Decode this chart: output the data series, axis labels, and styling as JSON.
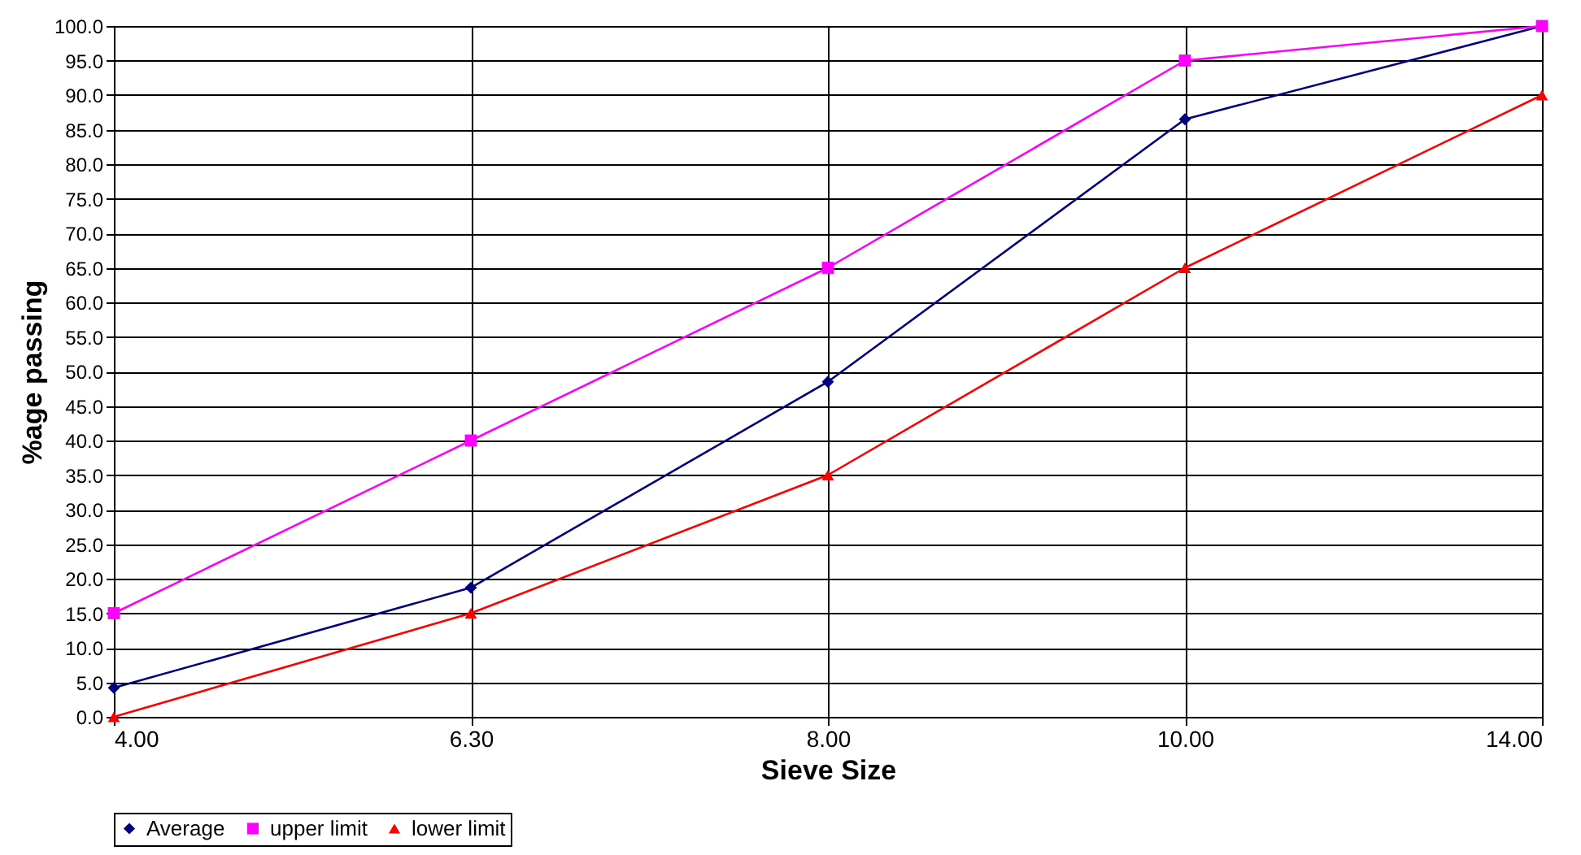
{
  "chart_data": {
    "type": "line",
    "xlabel": "Sieve Size",
    "ylabel": "%age passing",
    "categories": [
      "4.00",
      "6.30",
      "8.00",
      "10.00",
      "14.00"
    ],
    "series": [
      {
        "name": "Average",
        "color": "#000080",
        "marker": "diamond",
        "values": [
          4.2,
          18.7,
          48.5,
          86.5,
          100.0
        ]
      },
      {
        "name": "upper limit",
        "color": "#ff00ff",
        "marker": "square",
        "values": [
          15.0,
          40.0,
          65.0,
          95.0,
          100.0
        ]
      },
      {
        "name": "lower limit",
        "color": "#ff0000",
        "marker": "triangle",
        "values": [
          0.0,
          15.0,
          35.0,
          65.0,
          90.0
        ]
      }
    ],
    "ylim": [
      0,
      100
    ],
    "yticks": [
      {
        "value": 0,
        "label": "0.0"
      },
      {
        "value": 5,
        "label": "5.0"
      },
      {
        "value": 10,
        "label": "10.0"
      },
      {
        "value": 15,
        "label": "15.0"
      },
      {
        "value": 20,
        "label": "20.0"
      },
      {
        "value": 25,
        "label": "25.0"
      },
      {
        "value": 30,
        "label": "30.0"
      },
      {
        "value": 35,
        "label": "35.0"
      },
      {
        "value": 40,
        "label": "40.0"
      },
      {
        "value": 45,
        "label": "45.0"
      },
      {
        "value": 50,
        "label": "50.0"
      },
      {
        "value": 55,
        "label": "55.0"
      },
      {
        "value": 60,
        "label": "60.0"
      },
      {
        "value": 65,
        "label": "65.0"
      },
      {
        "value": 70,
        "label": "70.0"
      },
      {
        "value": 75,
        "label": "75.0"
      },
      {
        "value": 80,
        "label": "80.0"
      },
      {
        "value": 85,
        "label": "85.0"
      },
      {
        "value": 90,
        "label": "90.0"
      },
      {
        "value": 95,
        "label": "95.0"
      },
      {
        "value": 100,
        "label": "100.0"
      }
    ],
    "grid": true,
    "legend": "bottom",
    "line_style": "solid"
  }
}
